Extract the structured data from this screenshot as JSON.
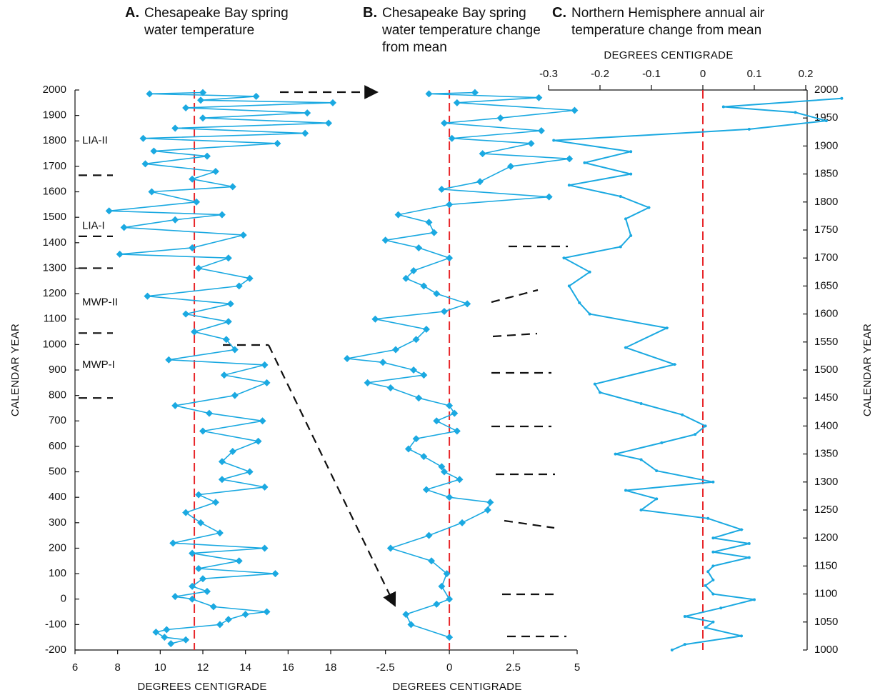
{
  "chart_data": [
    {
      "type": "line",
      "panel_label": "A.",
      "title_lines": [
        "Chesapeake Bay spring",
        "water temperature"
      ],
      "xlabel": "DEGREES CENTIGRADE",
      "ylabel": "CALENDAR YEAR",
      "color": "#1ba9e1",
      "marker": "diamond",
      "xlim": [
        6,
        18
      ],
      "xticks": [
        6,
        8,
        10,
        12,
        14,
        16,
        18
      ],
      "ylim": [
        -200,
        2000
      ],
      "yticks": [
        -200,
        -100,
        0,
        100,
        200,
        300,
        400,
        500,
        600,
        700,
        800,
        900,
        1000,
        1100,
        1200,
        1300,
        1400,
        1500,
        1600,
        1700,
        1800,
        1900,
        2000
      ],
      "mean": 11.6,
      "mean_color": "#e8262a",
      "annotations": [
        "LIA-II",
        "LIA-I",
        "MWP-II",
        "MWP-I"
      ],
      "boundaries": [
        1665,
        1425,
        1300,
        1045,
        790
      ],
      "x": [
        10.5,
        11.2,
        10.2,
        9.8,
        10.3,
        12.8,
        13.2,
        14.0,
        15.0,
        12.5,
        11.5,
        10.7,
        12.2,
        11.5,
        12.0,
        15.4,
        11.8,
        13.7,
        11.5,
        14.9,
        10.6,
        12.8,
        11.9,
        11.2,
        12.6,
        11.8,
        14.9,
        12.9,
        14.2,
        12.9,
        13.4,
        14.6,
        12.0,
        14.8,
        12.3,
        10.7,
        13.5,
        15.0,
        13.0,
        14.9,
        10.4,
        13.5,
        13.1,
        11.6,
        13.2,
        11.2,
        13.3,
        9.4,
        13.7,
        14.2,
        11.8,
        13.2,
        8.1,
        11.5,
        13.9,
        8.3,
        10.7,
        12.9,
        7.6,
        11.7,
        9.6,
        13.4,
        11.5,
        12.6,
        9.3,
        12.2,
        9.7,
        15.5,
        9.2,
        16.8,
        10.7,
        17.9,
        12.0,
        16.9,
        11.2,
        18.1,
        11.9,
        14.5,
        9.5,
        12.0
      ],
      "y": [
        -175,
        -160,
        -150,
        -130,
        -120,
        -100,
        -80,
        -60,
        -50,
        -30,
        0,
        10,
        30,
        50,
        80,
        100,
        120,
        150,
        180,
        200,
        220,
        260,
        300,
        340,
        380,
        410,
        440,
        470,
        500,
        540,
        580,
        620,
        660,
        700,
        730,
        760,
        800,
        850,
        880,
        920,
        940,
        980,
        1020,
        1050,
        1090,
        1120,
        1160,
        1190,
        1230,
        1260,
        1300,
        1340,
        1355,
        1380,
        1430,
        1460,
        1490,
        1510,
        1525,
        1560,
        1600,
        1620,
        1650,
        1680,
        1710,
        1740,
        1760,
        1790,
        1810,
        1830,
        1850,
        1870,
        1890,
        1910,
        1930,
        1950,
        1960,
        1975,
        1985,
        1990
      ]
    },
    {
      "type": "line",
      "panel_label": "B.",
      "title_lines": [
        "Chesapeake Bay spring",
        "water temperature change",
        "from mean"
      ],
      "xlabel": "DEGREES CENTIGRADE",
      "color": "#1ba9e1",
      "marker": "diamond",
      "xlim": [
        -4,
        5
      ],
      "xticks": [
        -2.5,
        0,
        2.5,
        5
      ],
      "ylim": [
        -200,
        2000
      ],
      "mean": 0,
      "mean_color": "#e8262a",
      "x": [
        0.0,
        -1.5,
        -1.7,
        -0.5,
        0.0,
        -0.3,
        -0.1,
        -0.7,
        -2.3,
        -0.8,
        0.5,
        1.5,
        1.6,
        0.0,
        -0.9,
        0.4,
        -0.2,
        -0.3,
        -1.0,
        -1.6,
        -1.3,
        0.3,
        -0.5,
        0.2,
        0.0,
        -1.2,
        -2.3,
        -3.2,
        -1.0,
        -1.4,
        -2.6,
        -4.0,
        -2.1,
        -1.3,
        -0.9,
        -2.9,
        -0.2,
        0.7,
        -0.5,
        -1.0,
        -1.7,
        -1.4,
        0.0,
        -1.2,
        -2.5,
        -0.6,
        -0.8,
        -2.0,
        0.0,
        3.9,
        -0.3,
        1.2,
        2.4,
        4.7,
        1.3,
        3.2,
        0.1,
        3.6,
        -0.2,
        2.0,
        4.9,
        0.3,
        3.5,
        -0.8,
        1.0
      ],
      "y": [
        -150,
        -100,
        -60,
        -20,
        0,
        50,
        100,
        150,
        200,
        250,
        300,
        350,
        380,
        400,
        430,
        470,
        500,
        520,
        560,
        590,
        630,
        660,
        700,
        730,
        760,
        790,
        830,
        850,
        880,
        900,
        930,
        945,
        980,
        1020,
        1060,
        1100,
        1130,
        1160,
        1200,
        1230,
        1260,
        1290,
        1340,
        1380,
        1410,
        1440,
        1480,
        1510,
        1550,
        1580,
        1610,
        1640,
        1700,
        1730,
        1750,
        1790,
        1810,
        1840,
        1870,
        1890,
        1920,
        1950,
        1970,
        1985,
        1990
      ]
    },
    {
      "type": "line",
      "panel_label": "C.",
      "title_lines": [
        "Northern Hemisphere annual air",
        "temperature change from mean"
      ],
      "xlabel": "DEGREES CENTIGRADE",
      "y2label": "CALENDAR YEAR",
      "color": "#1ba9e1",
      "marker": "dot",
      "xlim": [
        -0.3,
        0.2
      ],
      "xticks": [
        -0.3,
        -0.2,
        -0.1,
        0,
        0.1,
        0.2
      ],
      "y2lim": [
        1000,
        2000
      ],
      "y2ticks": [
        1000,
        1050,
        1100,
        1150,
        1200,
        1250,
        1300,
        1350,
        1400,
        1450,
        1500,
        1550,
        1600,
        1650,
        1700,
        1750,
        1800,
        1850,
        1900,
        1950,
        2000
      ],
      "mean": 0,
      "mean_color": "#e8262a",
      "x": [
        -0.06,
        -0.035,
        0.075,
        0.005,
        0.02,
        -0.035,
        0.035,
        0.1,
        0.02,
        0.005,
        0.02,
        0.01,
        0.02,
        0.09,
        0.02,
        0.09,
        0.02,
        0.075,
        0.01,
        -0.12,
        -0.09,
        -0.15,
        0.02,
        -0.09,
        -0.12,
        -0.17,
        -0.08,
        -0.015,
        0.005,
        -0.04,
        -0.12,
        -0.2,
        -0.21,
        -0.055,
        -0.15,
        -0.07,
        -0.22,
        -0.24,
        -0.26,
        -0.22,
        -0.27,
        -0.16,
        -0.14,
        -0.15,
        -0.105,
        -0.16,
        -0.26,
        -0.14,
        -0.23,
        -0.14,
        -0.29,
        0.09,
        0.24,
        0.18,
        0.04,
        0.27
      ],
      "y": [
        1000,
        1010,
        1025,
        1040,
        1050,
        1060,
        1075,
        1090,
        1100,
        1115,
        1125,
        1140,
        1150,
        1165,
        1175,
        1190,
        1200,
        1215,
        1235,
        1250,
        1270,
        1285,
        1300,
        1320,
        1340,
        1350,
        1370,
        1385,
        1400,
        1420,
        1440,
        1460,
        1475,
        1510,
        1540,
        1575,
        1600,
        1620,
        1650,
        1675,
        1700,
        1720,
        1740,
        1770,
        1790,
        1810,
        1830,
        1850,
        1870,
        1890,
        1910,
        1930,
        1945,
        1960,
        1970,
        1985
      ]
    }
  ]
}
